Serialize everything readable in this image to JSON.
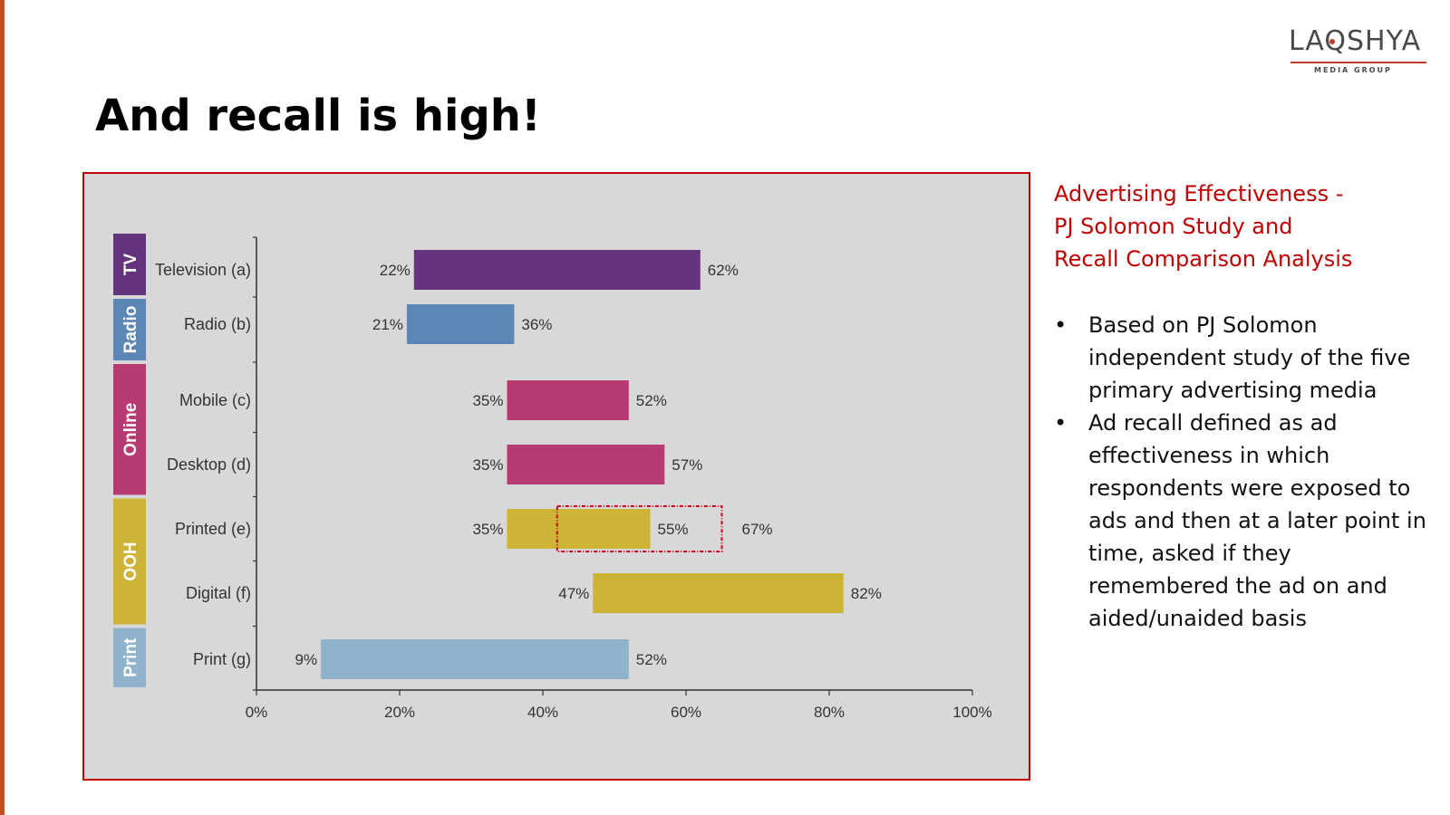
{
  "slide": {
    "title": "And recall is high!",
    "side_title_lines": [
      "Advertising Effectiveness -",
      "PJ Solomon Study and",
      "Recall Comparison Analysis"
    ],
    "bullets": [
      "Based on PJ Solomon independent study of the five primary advertising media",
      "Ad recall defined as ad effectiveness in which respondents were exposed to ads and then at a later point in time, asked if they remembered the ad on and aided/unaided basis"
    ]
  },
  "logo": {
    "word": "LAQSHYA",
    "sub": "MEDIA GROUP",
    "accent": "#c0392b"
  },
  "colors": {
    "frame_border": "#c00000",
    "chart_bg": "#d8d8d8",
    "highlight_box": "#d0021b",
    "left_rule": "#c0501e"
  },
  "chart_data": {
    "type": "bar",
    "orientation": "horizontal-range",
    "categories": [
      "Television (a)",
      "Radio (b)",
      "Mobile (c)",
      "Desktop (d)",
      "Printed (e)",
      "Digital (f)",
      "Print (g)"
    ],
    "low": [
      22,
      21,
      35,
      35,
      35,
      47,
      9
    ],
    "high": [
      62,
      36,
      52,
      57,
      55,
      82,
      52
    ],
    "low_labels": [
      "22%",
      "21%",
      "35%",
      "35%",
      "35%",
      "47%",
      "9%"
    ],
    "high_labels": [
      "62%",
      "36%",
      "52%",
      "57%",
      "55%",
      "82%",
      "52%"
    ],
    "bar_colors": [
      "#66347f",
      "#5b86b5",
      "#b83a72",
      "#b83a72",
      "#cdb436",
      "#cdb436",
      "#8fb3ca"
    ],
    "groups": [
      {
        "label": "TV",
        "rows": [
          0
        ],
        "color": "#66347f"
      },
      {
        "label": "Radio",
        "rows": [
          1
        ],
        "color": "#5b86b5"
      },
      {
        "label": "Online",
        "rows": [
          2,
          3
        ],
        "color": "#b83a72"
      },
      {
        "label": "OOH",
        "rows": [
          4,
          5
        ],
        "color": "#cdb436"
      },
      {
        "label": "Print",
        "rows": [
          6
        ],
        "color": "#8fb3ca"
      }
    ],
    "highlight": {
      "category": "Printed (e)",
      "from": 42,
      "to": 65,
      "label": "67%"
    },
    "x_ticks": [
      0,
      20,
      40,
      60,
      80,
      100
    ],
    "x_tick_labels": [
      "0%",
      "20%",
      "40%",
      "60%",
      "80%",
      "100%"
    ],
    "xlim": [
      0,
      100
    ],
    "grid": false,
    "legend": "none"
  }
}
